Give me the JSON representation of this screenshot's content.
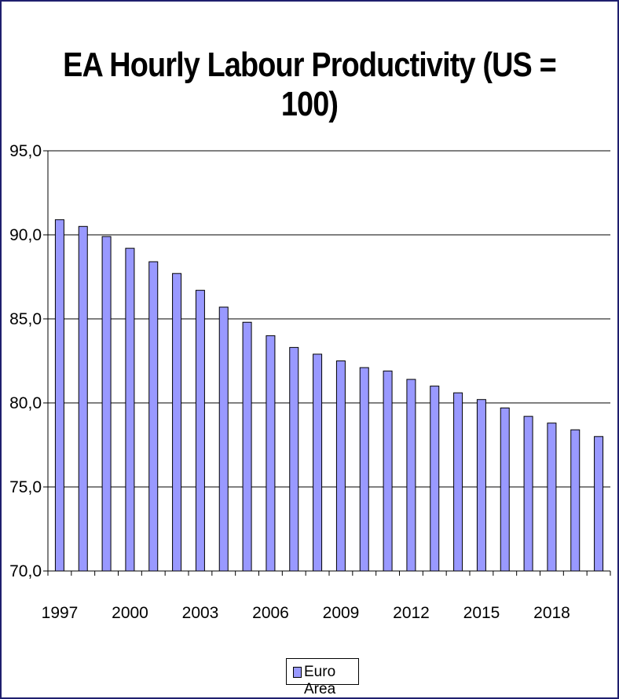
{
  "chart_data": {
    "type": "bar",
    "title": "EA Hourly Labour Productivity (US = 100)",
    "categories": [
      "1997",
      "1998",
      "1999",
      "2000",
      "2001",
      "2002",
      "2003",
      "2004",
      "2005",
      "2006",
      "2007",
      "2008",
      "2009",
      "2010",
      "2011",
      "2012",
      "2013",
      "2014",
      "2015",
      "2016",
      "2017",
      "2018",
      "2019",
      "2020"
    ],
    "x_tick_labels": [
      "1997",
      "2000",
      "2003",
      "2006",
      "2009",
      "2012",
      "2015",
      "2018"
    ],
    "series": [
      {
        "name": "Euro Area",
        "color": "#9999ff",
        "values": [
          90.9,
          90.5,
          89.9,
          89.2,
          88.4,
          87.7,
          86.7,
          85.7,
          84.8,
          84.0,
          83.3,
          82.9,
          82.5,
          82.1,
          81.9,
          81.4,
          81.0,
          80.6,
          80.2,
          79.7,
          79.2,
          78.8,
          78.4,
          78.0
        ]
      }
    ],
    "ylim": [
      70.0,
      95.0
    ],
    "y_tick_labels": [
      "70,0",
      "75,0",
      "80,0",
      "85,0",
      "90,0",
      "95,0"
    ],
    "y_tick_values": [
      70,
      75,
      80,
      85,
      90,
      95
    ],
    "grid": true,
    "legend": "bottom-center"
  }
}
